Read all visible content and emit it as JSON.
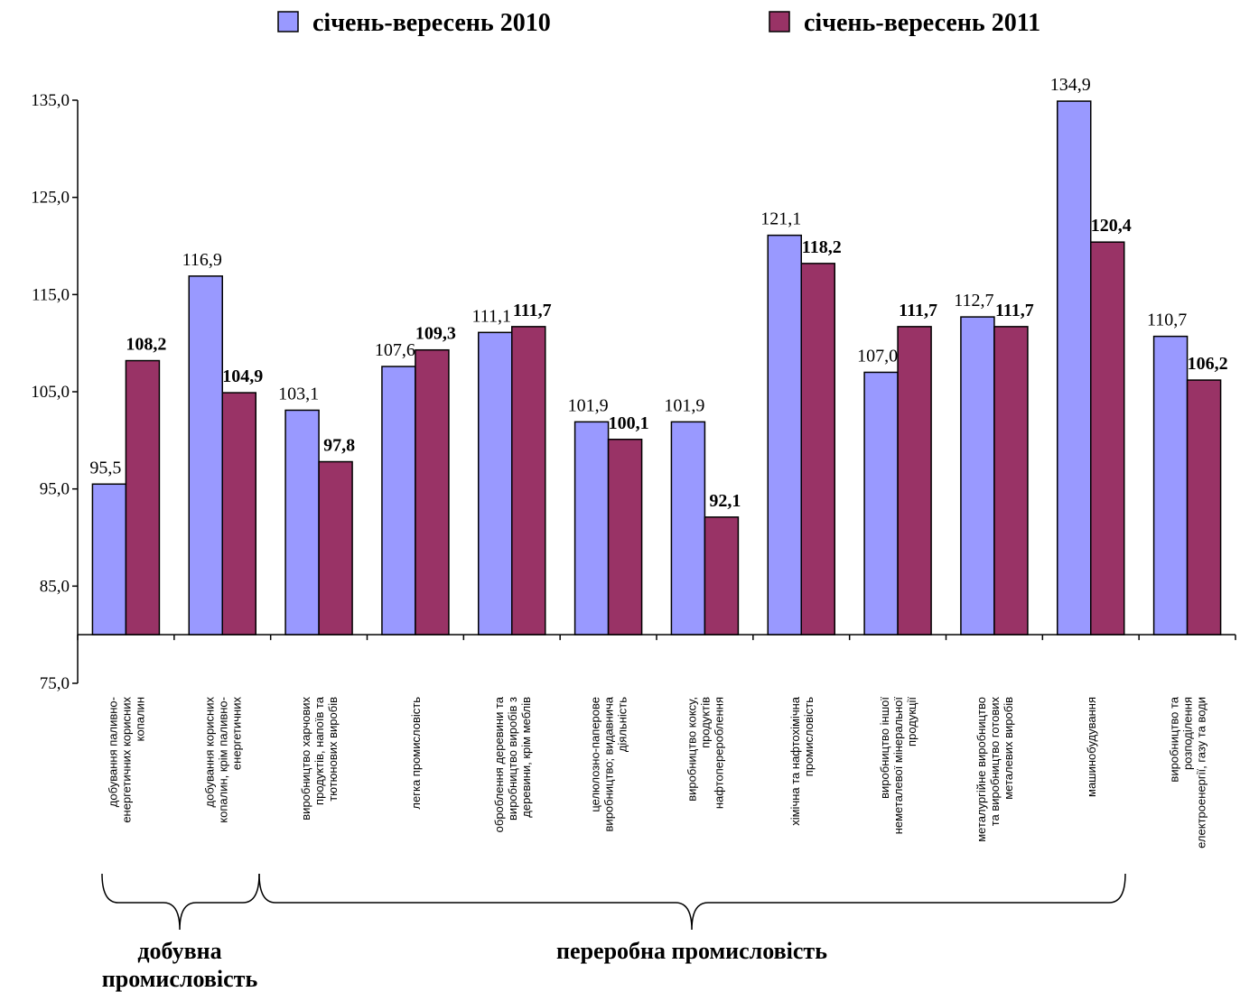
{
  "chart_data": {
    "type": "bar",
    "title": "",
    "xlabel": "",
    "ylabel": "",
    "ylim": [
      75,
      135
    ],
    "y_ticks": [
      "75,0",
      "85,0",
      "95,0",
      "105,0",
      "115,0",
      "125,0",
      "135,0"
    ],
    "y_tick_values": [
      75,
      85,
      95,
      105,
      115,
      125,
      135
    ],
    "baseline": 80,
    "legend_position": "top",
    "categories": [
      [
        "добування паливно-",
        "енергетичних корисних",
        "копалин"
      ],
      [
        "добування корисних",
        "копалин, крім паливно-",
        "енергетичних"
      ],
      [
        "виробництво харчових",
        "продуктів, напоїв та",
        "тютюнових виробів"
      ],
      [
        "легка промисловість"
      ],
      [
        "оброблення деревини та",
        "виробництво виробів з",
        "деревини, крім меблів"
      ],
      [
        "целюлозно-паперове",
        "виробництво; видавнича",
        "діяльність"
      ],
      [
        "виробництво коксу,",
        "продуктів",
        "нафтоперероблення"
      ],
      [
        "хімічна та нафтохімічна",
        "промисловість"
      ],
      [
        "виробництво іншої",
        "неметалевої мінеральної",
        "продукції"
      ],
      [
        "металургійне виробництво",
        "та виробництво готових",
        "металевих виробів"
      ],
      [
        "машинобудування"
      ],
      [
        "виробництво та",
        "розподілення",
        "електроенергії, газу та води"
      ]
    ],
    "series": [
      {
        "name": "січень-вересень 2010",
        "color": "#9999ff",
        "values": [
          95.5,
          116.9,
          103.1,
          107.6,
          111.1,
          101.9,
          101.9,
          121.1,
          107.0,
          112.7,
          134.9,
          110.7
        ],
        "labels": [
          "95,5",
          "116,9",
          "103,1",
          "107,6",
          "111,1",
          "101,9",
          "101,9",
          "121,1",
          "107,0",
          "112,7",
          "134,9",
          "110,7"
        ]
      },
      {
        "name": "січень-вересень 2011",
        "color": "#993366",
        "values": [
          108.2,
          104.9,
          97.8,
          109.3,
          111.7,
          100.1,
          92.1,
          118.2,
          111.7,
          111.7,
          120.4,
          106.2
        ],
        "labels": [
          "108,2",
          "104,9",
          "97,8",
          "109,3",
          "111,7",
          "100,1",
          "92,1",
          "118,2",
          "111,7",
          "111,7",
          "120,4",
          "106,2"
        ]
      }
    ],
    "groups": [
      {
        "lines": [
          "добувна",
          "промисловість"
        ],
        "from": 0,
        "to": 1
      },
      {
        "lines": [
          "переробна промисловість"
        ],
        "from": 2,
        "to": 10
      }
    ]
  }
}
